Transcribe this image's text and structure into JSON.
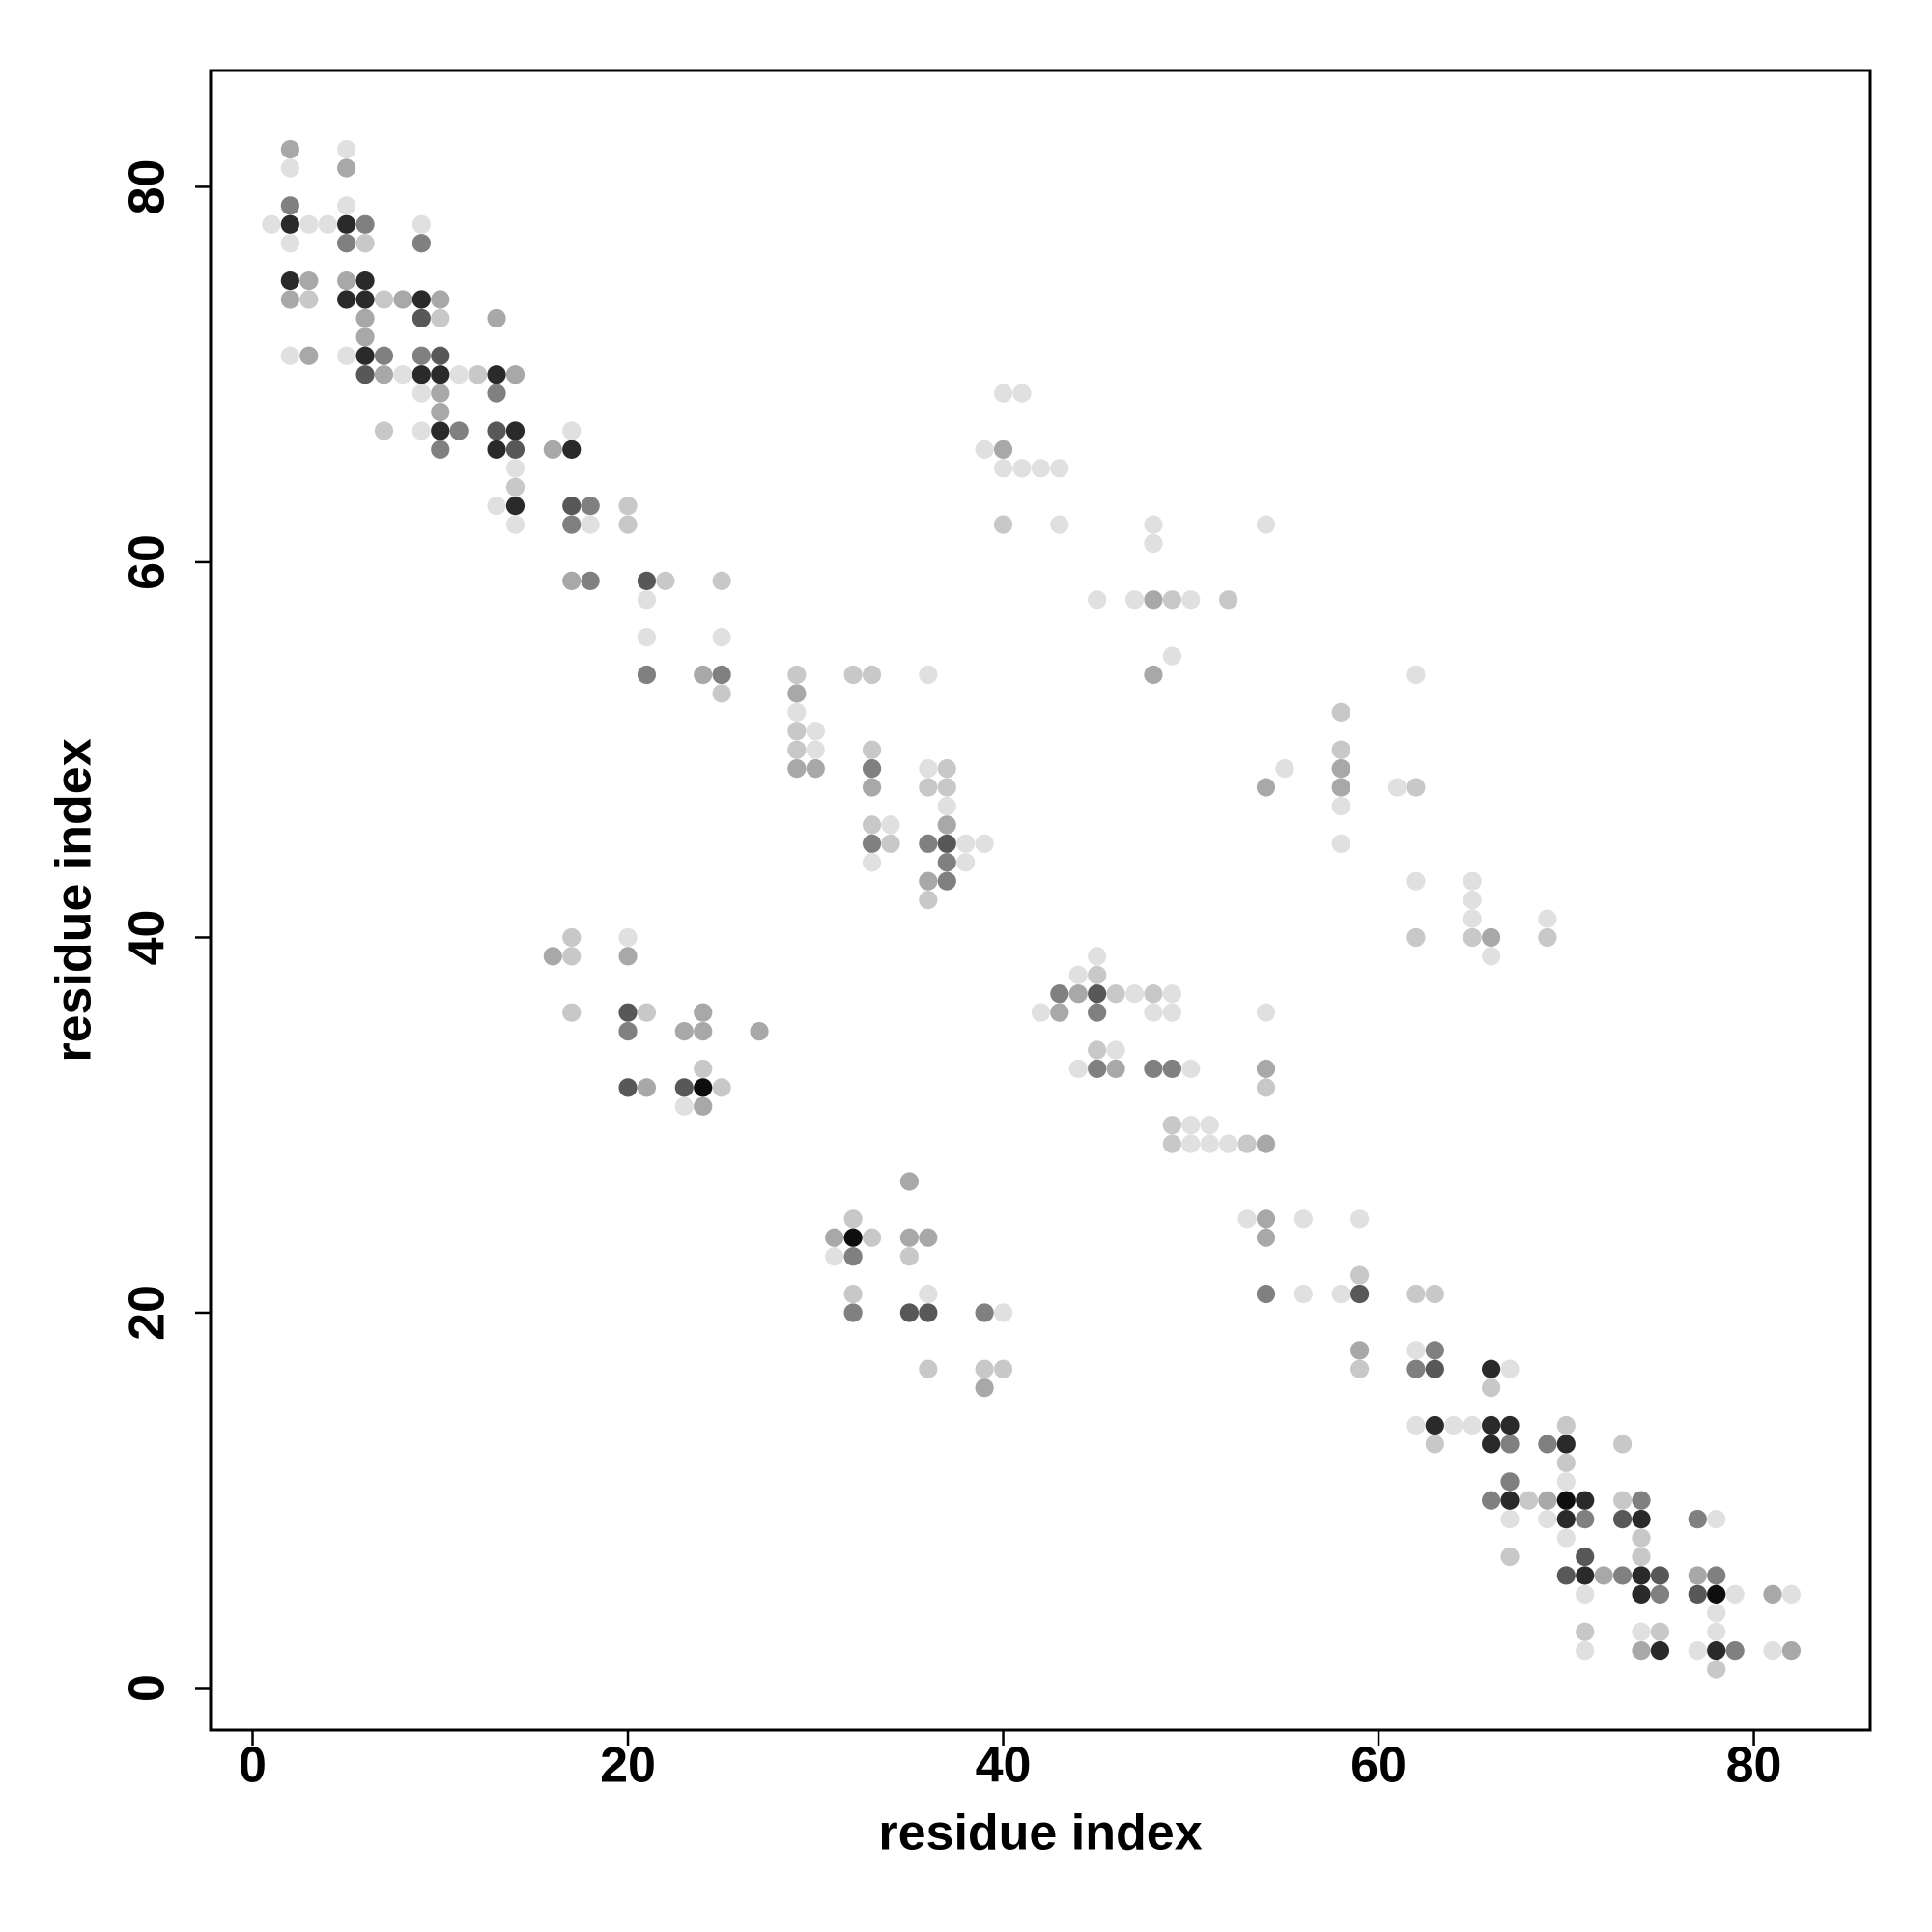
{
  "chart_data": {
    "type": "scatter",
    "x_label": "residue index",
    "y_label": "residue index",
    "xlim": [
      -2.24,
      86.2
    ],
    "ylim": [
      -2.24,
      86.2
    ],
    "xticks": [
      0,
      20,
      40,
      60,
      80
    ],
    "yticks": [
      0,
      20,
      40,
      60,
      80
    ],
    "grid": false,
    "series": [
      {
        "color": "#e0e0e0",
        "x": [
          5,
          2,
          5,
          1,
          3,
          4,
          9,
          2,
          2,
          5,
          8,
          11,
          9,
          9,
          17,
          14,
          13,
          14,
          18,
          21,
          21,
          25,
          40,
          41,
          39,
          40,
          41,
          42,
          43,
          43,
          48,
          54,
          48,
          45,
          47,
          50,
          49,
          36,
          29,
          30,
          30,
          36,
          37,
          34,
          38,
          39,
          33,
          38,
          55,
          61,
          58,
          58,
          62,
          62,
          65,
          65,
          65,
          66,
          69,
          20,
          45,
          44,
          47,
          49,
          42,
          48,
          49,
          54,
          46,
          44,
          50,
          50,
          51,
          50,
          51,
          52,
          53,
          56,
          59,
          31,
          36,
          56,
          58,
          40,
          23,
          62,
          67,
          62,
          64,
          65,
          70,
          67,
          69,
          78,
          70,
          71,
          79,
          82,
          78,
          74,
          78,
          71,
          77,
          81
        ],
        "y": [
          82,
          81,
          79,
          78,
          78,
          78,
          78,
          77,
          71,
          71,
          70,
          70,
          69,
          67,
          67,
          65,
          63,
          62,
          62,
          58,
          56,
          56,
          69,
          69,
          66,
          65,
          65,
          65,
          65,
          62,
          62,
          62,
          61,
          58,
          58,
          58,
          55,
          54,
          52,
          51,
          50,
          49,
          47,
          46,
          45,
          45,
          44,
          44,
          49,
          48,
          47,
          45,
          54,
          43,
          43,
          42,
          41,
          39,
          41,
          40,
          39,
          38,
          37,
          37,
          36,
          36,
          36,
          36,
          34,
          33,
          33,
          30,
          30,
          29,
          29,
          29,
          25,
          25,
          25,
          23,
          21,
          21,
          21,
          20,
          31,
          18,
          17,
          14,
          14,
          14,
          11,
          9,
          9,
          9,
          8,
          5,
          5,
          5,
          4,
          3,
          3,
          2,
          2,
          2
        ]
      },
      {
        "color": "#c8c8c8",
        "x": [
          6,
          3,
          7,
          10,
          12,
          7,
          14,
          20,
          20,
          22,
          25,
          25,
          40,
          49,
          52,
          33,
          32,
          29,
          29,
          29,
          33,
          37,
          36,
          37,
          33,
          34,
          36,
          58,
          58,
          62,
          62,
          65,
          69,
          17,
          17,
          17,
          21,
          24,
          25,
          45,
          46,
          48,
          45,
          54,
          49,
          49,
          53,
          32,
          33,
          35,
          32,
          62,
          63,
          59,
          36,
          39,
          40,
          59,
          66,
          63,
          73,
          70,
          70,
          68,
          73,
          74,
          67,
          74,
          71,
          75,
          78
        ],
        "y": [
          77,
          74,
          74,
          73,
          70,
          67,
          64,
          63,
          62,
          59,
          59,
          53,
          62,
          58,
          58,
          54,
          54,
          54,
          51,
          50,
          50,
          49,
          48,
          48,
          46,
          45,
          42,
          52,
          50,
          48,
          40,
          40,
          40,
          40,
          39,
          36,
          36,
          33,
          32,
          38,
          37,
          37,
          34,
          32,
          30,
          29,
          29,
          25,
          24,
          23,
          21,
          21,
          21,
          22,
          17,
          17,
          17,
          17,
          16,
          13,
          13,
          14,
          12,
          10,
          10,
          8,
          7,
          7,
          3,
          3,
          1
        ]
      },
      {
        "color": "#a8a8a8",
        "x": [
          2,
          5,
          3,
          5,
          2,
          8,
          10,
          6,
          13,
          6,
          3,
          7,
          14,
          10,
          10,
          16,
          17,
          24,
          40,
          48,
          48,
          29,
          29,
          30,
          33,
          37,
          36,
          54,
          58,
          58,
          66,
          16,
          20,
          24,
          23,
          24,
          27,
          21,
          24,
          44,
          43,
          46,
          54,
          54,
          35,
          54,
          31,
          35,
          36,
          54,
          39,
          59,
          69,
          72,
          77,
          81,
          74,
          82
        ],
        "y": [
          82,
          81,
          75,
          75,
          74,
          74,
          74,
          73,
          73,
          72,
          71,
          70,
          70,
          69,
          68,
          66,
          59,
          54,
          66,
          58,
          54,
          53,
          49,
          49,
          48,
          46,
          43,
          48,
          49,
          48,
          40,
          39,
          39,
          36,
          35,
          35,
          35,
          32,
          31,
          37,
          36,
          33,
          33,
          29,
          27,
          25,
          24,
          24,
          24,
          24,
          16,
          18,
          10,
          6,
          6,
          5,
          2,
          2
        ]
      },
      {
        "color": "#808080",
        "x": [
          2,
          6,
          5,
          9,
          9,
          7,
          13,
          11,
          10,
          18,
          17,
          18,
          21,
          25,
          33,
          33,
          36,
          37,
          37,
          20,
          43,
          45,
          45,
          48,
          49,
          32,
          54,
          32,
          39,
          63,
          62,
          67,
          69,
          67,
          66,
          74,
          71,
          77,
          73,
          78,
          75,
          79
        ],
        "y": [
          79,
          78,
          77,
          77,
          71,
          71,
          69,
          67,
          66,
          63,
          62,
          59,
          54,
          54,
          49,
          45,
          45,
          44,
          43,
          35,
          37,
          36,
          33,
          33,
          33,
          23,
          21,
          20,
          20,
          18,
          17,
          13,
          13,
          11,
          10,
          10,
          9,
          9,
          6,
          6,
          5,
          2
        ]
      },
      {
        "color": "#585858",
        "x": [
          9,
          10,
          6,
          13,
          14,
          17,
          21,
          37,
          20,
          20,
          23,
          45,
          59,
          35,
          36,
          63,
          73,
          71,
          70,
          75,
          77
        ],
        "y": [
          73,
          71,
          70,
          67,
          66,
          63,
          59,
          45,
          36,
          32,
          32,
          37,
          21,
          20,
          20,
          17,
          9,
          7,
          6,
          6,
          5
        ]
      },
      {
        "color": "#2a2a2a",
        "x": [
          2,
          5,
          2,
          6,
          5,
          6,
          9,
          6,
          9,
          10,
          13,
          10,
          14,
          13,
          17,
          14,
          63,
          66,
          67,
          66,
          70,
          66,
          67,
          71,
          70,
          74,
          71,
          74,
          74,
          75,
          78
        ],
        "y": [
          78,
          78,
          75,
          75,
          74,
          74,
          74,
          71,
          70,
          70,
          70,
          67,
          67,
          66,
          66,
          63,
          14,
          14,
          14,
          13,
          13,
          17,
          10,
          10,
          9,
          9,
          6,
          6,
          5,
          2,
          2
        ]
      },
      {
        "color": "#0e0e0e",
        "x": [
          24,
          32,
          70,
          78
        ],
        "y": [
          32,
          24,
          10,
          5
        ]
      }
    ]
  }
}
